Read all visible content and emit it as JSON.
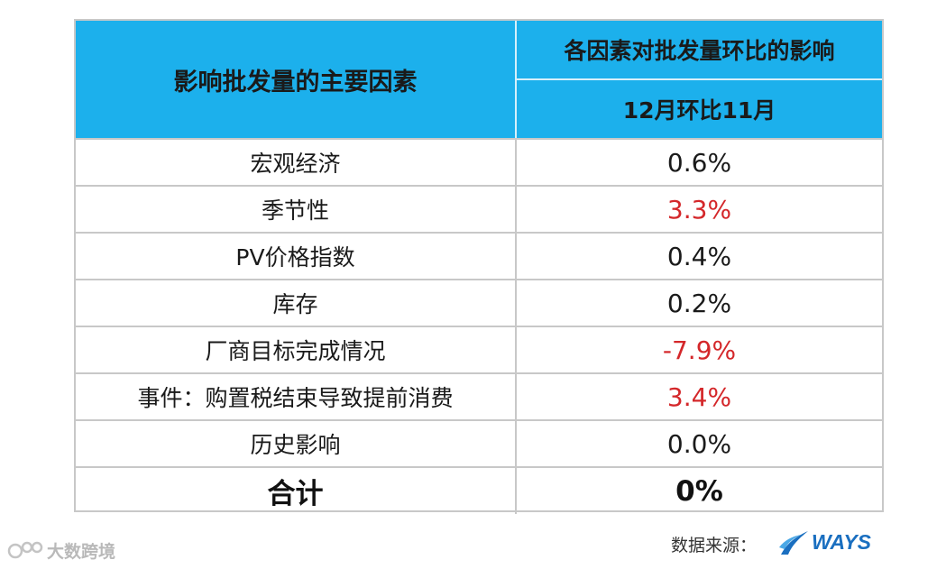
{
  "table": {
    "header_left": "影响批发量的主要因素",
    "header_right_top": "各因素对批发量环比的影响",
    "header_right_bottom": "12月环比11月"
  },
  "chart_data": {
    "type": "table",
    "columns": [
      "影响批发量的主要因素",
      "12月环比11月"
    ],
    "rows": [
      {
        "factor": "宏观经济",
        "value": "0.6%",
        "highlight": false
      },
      {
        "factor": "季节性",
        "value": "3.3%",
        "highlight": true
      },
      {
        "factor": "PV价格指数",
        "value": "0.4%",
        "highlight": false
      },
      {
        "factor": "库存",
        "value": "0.2%",
        "highlight": false
      },
      {
        "factor": "厂商目标完成情况",
        "value": "-7.9%",
        "highlight": true
      },
      {
        "factor": "事件：购置税结束导致提前消费",
        "value": "3.4%",
        "highlight": true
      },
      {
        "factor": "历史影响",
        "value": "0.0%",
        "highlight": false
      }
    ],
    "total": {
      "factor": "合计",
      "value": "0%"
    }
  },
  "colors": {
    "header_bg": "#1cb0ec",
    "highlight_text": "#d4272a",
    "border": "#c8c8c8"
  },
  "footer": {
    "source_label": "数据来源：",
    "logo_text": "WAYS",
    "watermark_text": "大数跨境"
  }
}
